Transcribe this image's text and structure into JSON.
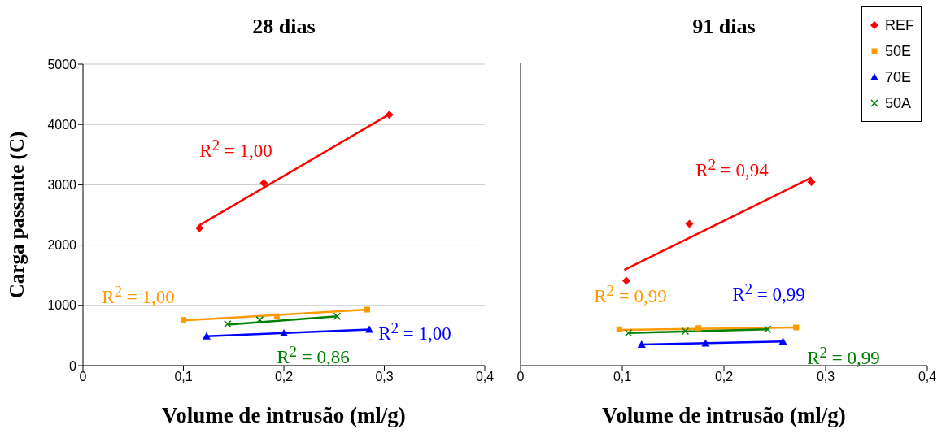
{
  "chart_data": [
    {
      "type": "scatter",
      "title": "28 dias",
      "xlabel": "Volume de intrusão (ml/g)",
      "ylabel": "Carga passante (C)",
      "xlim": [
        0,
        0.4
      ],
      "xticks": [
        0,
        {
          "value": 0.1,
          "label": "0,1"
        },
        {
          "value": 0.2,
          "label": "0,2"
        },
        {
          "value": 0.3,
          "label": "0,3"
        },
        {
          "value": 0.4,
          "label": "0,4"
        }
      ],
      "ylim": [
        0,
        5000
      ],
      "yticks": [
        0,
        1000,
        2000,
        3000,
        4000,
        5000
      ],
      "grid": "y",
      "legend": false,
      "series": [
        {
          "color": "#ff0000",
          "marker": "diamond",
          "x": [
            0.116,
            0.18,
            0.305
          ],
          "values": [
            2280,
            3030,
            4160
          ]
        },
        {
          "color": "#ff9900",
          "marker": "square",
          "x": [
            0.1,
            0.193,
            0.283
          ],
          "values": [
            760,
            820,
            930
          ]
        },
        {
          "color": "#0000ff",
          "marker": "triangle",
          "x": [
            0.123,
            0.2,
            0.285
          ],
          "values": [
            490,
            540,
            600
          ]
        },
        {
          "color": "#008000",
          "marker": "cross",
          "x": [
            0.144,
            0.176,
            0.253
          ],
          "values": [
            690,
            760,
            820
          ]
        },
        {
          "type": "line",
          "color": "#ff0000",
          "x": [
            0.116,
            0.305
          ],
          "values": [
            2330,
            4170
          ]
        },
        {
          "type": "line",
          "color": "#ff9900",
          "x": [
            0.1,
            0.283
          ],
          "values": [
            750,
            930
          ]
        },
        {
          "type": "line",
          "color": "#0000ff",
          "x": [
            0.123,
            0.285
          ],
          "values": [
            490,
            600
          ]
        },
        {
          "type": "line",
          "color": "#008000",
          "x": [
            0.144,
            0.253
          ],
          "values": [
            680,
            820
          ]
        }
      ],
      "annotations": [
        "R$^{2}$ = 1,00",
        "R$^{2}$ = 1,00",
        "R$^{2}$ = 1,00",
        "R$^{2}$ = 0,86"
      ]
    },
    {
      "type": "scatter",
      "title": "91 dias",
      "xlabel": "Volume de intrusão (ml/g)",
      "xlim": [
        0,
        0.4
      ],
      "xticks": [
        0,
        {
          "value": 0.1,
          "label": "0,1"
        },
        {
          "value": 0.2,
          "label": "0,2"
        },
        {
          "value": 0.3,
          "label": "0,3"
        },
        {
          "value": 0.4,
          "label": "0,4"
        }
      ],
      "ylim": [
        0,
        5000
      ],
      "yticks": [
        0,
        1000,
        2000,
        3000,
        4000,
        5000
      ],
      "grid": "y",
      "legend": "top right",
      "tick_labels": "x",
      "series": [
        {
          "name": "REF",
          "color": "#ff0000",
          "marker": "diamond",
          "x": [
            0.104,
            0.166,
            0.286
          ],
          "values": [
            1400,
            2340,
            3030
          ]
        },
        {
          "name": "50E",
          "color": "#ff9900",
          "marker": "square",
          "x": [
            0.097,
            0.175,
            0.271
          ],
          "values": [
            600,
            620,
            630
          ]
        },
        {
          "name": "70E",
          "color": "#0000ff",
          "marker": "triangle",
          "x": [
            0.119,
            0.182,
            0.258
          ],
          "values": [
            350,
            370,
            400
          ]
        },
        {
          "name": "50A",
          "color": "#008000",
          "marker": "cross",
          "x": [
            0.106,
            0.162,
            0.243
          ],
          "values": [
            540,
            570,
            600
          ]
        },
        {
          "type": "line",
          "color": "#ff0000",
          "x": [
            0.102,
            0.286
          ],
          "values": [
            1580,
            3100
          ]
        },
        {
          "type": "line",
          "color": "#ff9900",
          "x": [
            0.097,
            0.271
          ],
          "values": [
            590,
            630
          ]
        },
        {
          "type": "line",
          "color": "#0000ff",
          "x": [
            0.119,
            0.258
          ],
          "values": [
            350,
            400
          ]
        },
        {
          "type": "line",
          "color": "#008000",
          "x": [
            0.106,
            0.243
          ],
          "values": [
            540,
            600
          ]
        }
      ],
      "annotations": [
        "R$^{2}$ = 0,94",
        "R$^{2}$ = 0,99",
        "R$^{2}$ = 0,99",
        "R$^{2}$ = 0,99"
      ]
    }
  ]
}
